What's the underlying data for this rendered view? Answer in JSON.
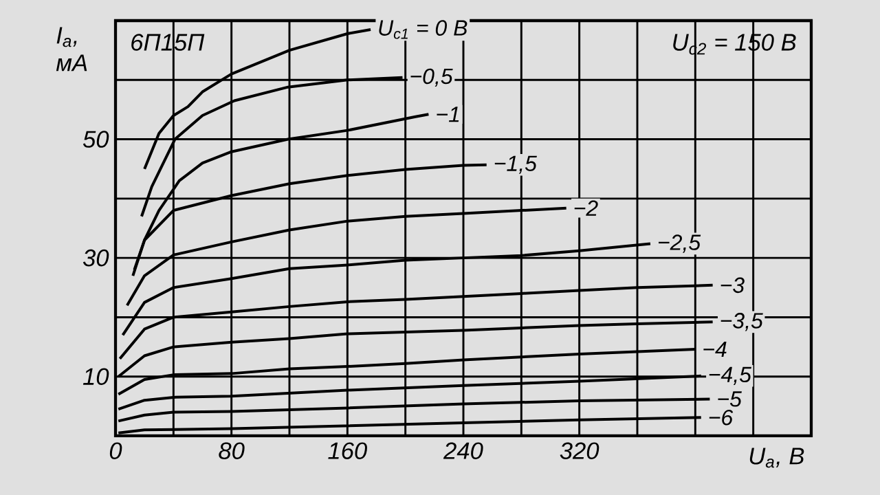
{
  "chart_data": {
    "type": "line",
    "xlabel": "U$_{a}$, В",
    "ylabel": "I$_{a}$, мА",
    "annotations": [
      "6П15П",
      "U$_{c2}$ = 150 В"
    ],
    "xlim": [
      0,
      480
    ],
    "ylim": [
      0,
      70
    ],
    "xticks": [
      0,
      {
        "value": 40,
        "label": null
      },
      80,
      {
        "value": 120,
        "label": null
      },
      160,
      {
        "value": 200,
        "label": null
      },
      240,
      {
        "value": 280,
        "label": null
      },
      320,
      {
        "value": 360,
        "label": null
      },
      {
        "value": 400,
        "label": null
      },
      {
        "value": 440,
        "label": null
      }
    ],
    "yticks": [
      {
        "value": 0,
        "label": null
      },
      10,
      {
        "value": 20,
        "label": null
      },
      30,
      {
        "value": 40,
        "label": null
      },
      50,
      {
        "value": 60,
        "label": null
      }
    ],
    "grid": true,
    "line_style": "solid",
    "series": [
      {
        "name": "U$_{c1}$ = 0 В",
        "color": "#000000",
        "x": [
          20,
          30,
          40,
          50,
          60,
          80,
          120,
          160,
          176
        ],
        "values": [
          45,
          51,
          54,
          55.5,
          58,
          61,
          65,
          67.8,
          68.5
        ]
      },
      {
        "name": "−0,5",
        "color": "#000000",
        "x": [
          18,
          25,
          41,
          60,
          82,
          119,
          160,
          198
        ],
        "values": [
          37,
          42,
          50,
          54,
          56.5,
          58.8,
          60,
          60.4
        ]
      },
      {
        "name": "−1",
        "color": "#000000",
        "x": [
          13,
          20,
          30,
          44,
          60,
          80,
          119,
          160,
          207,
          216
        ],
        "values": [
          28,
          33,
          38,
          43,
          46,
          47.9,
          50,
          51.5,
          53.8,
          54.2
        ]
      },
      {
        "name": "−1,5",
        "color": "#000000",
        "x": [
          12,
          20,
          40,
          80,
          120,
          160,
          200,
          240,
          256
        ],
        "values": [
          27,
          33,
          38,
          40.5,
          42.5,
          43.9,
          44.9,
          45.6,
          45.7
        ]
      },
      {
        "name": "−2",
        "color": "#000000",
        "x": [
          8,
          20,
          40,
          80,
          120,
          160,
          200,
          240,
          280,
          311
        ],
        "values": [
          22,
          27,
          30.5,
          32.7,
          34.7,
          36.2,
          37,
          37.5,
          38,
          38.4
        ]
      },
      {
        "name": "−2,5",
        "color": "#000000",
        "x": [
          5,
          20,
          40,
          80,
          120,
          160,
          200,
          240,
          280,
          320,
          369
        ],
        "values": [
          17,
          22.5,
          25,
          26.5,
          28.2,
          28.8,
          29.6,
          30,
          30.4,
          31.2,
          32.4
        ]
      },
      {
        "name": "−3",
        "color": "#000000",
        "x": [
          3,
          20,
          40,
          80,
          120,
          160,
          200,
          240,
          280,
          320,
          360,
          412
        ],
        "values": [
          13,
          18,
          20,
          20.9,
          21.8,
          22.6,
          23,
          23.5,
          24,
          24.5,
          25,
          25.4
        ]
      },
      {
        "name": "−3,5",
        "color": "#000000",
        "x": [
          2,
          20,
          40,
          80,
          120,
          160,
          200,
          240,
          280,
          320,
          360,
          412
        ],
        "values": [
          10,
          13.5,
          15,
          15.8,
          16.4,
          17.2,
          17.5,
          17.8,
          18.2,
          18.6,
          18.9,
          19.2
        ]
      },
      {
        "name": "−4",
        "color": "#000000",
        "x": [
          2,
          20,
          40,
          80,
          120,
          160,
          200,
          240,
          280,
          320,
          360,
          400
        ],
        "values": [
          7,
          9.5,
          10.3,
          10.5,
          11.3,
          11.7,
          12.2,
          12.8,
          13.3,
          13.8,
          14.2,
          14.6
        ]
      },
      {
        "name": "−4,5",
        "color": "#000000",
        "x": [
          2,
          20,
          40,
          80,
          160,
          240,
          320,
          404
        ],
        "values": [
          4.5,
          6,
          6.5,
          6.7,
          7.7,
          8.5,
          9.2,
          10.1
        ]
      },
      {
        "name": "−5",
        "color": "#000000",
        "x": [
          2,
          20,
          40,
          80,
          160,
          240,
          320,
          410
        ],
        "values": [
          2.5,
          3.5,
          4,
          4.1,
          4.7,
          5.4,
          5.9,
          6.2
        ]
      },
      {
        "name": "−6",
        "color": "#000000",
        "x": [
          2,
          20,
          80,
          240,
          320,
          404
        ],
        "values": [
          0.5,
          1,
          1.2,
          2.2,
          2.7,
          3.1
        ]
      }
    ]
  }
}
